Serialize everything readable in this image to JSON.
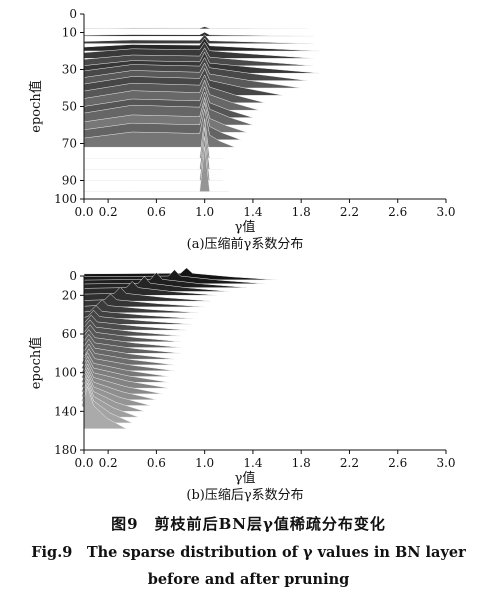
{
  "chart_data": [
    {
      "type": "area",
      "subtitle": "(a)压缩前γ系数分布",
      "xlabel": "γ值",
      "ylabel": "epoch值",
      "xlim": [
        0,
        3.0
      ],
      "ylim": [
        0,
        100
      ],
      "y_inverted": true,
      "x_ticks": [
        "0.0",
        "0.2",
        "0.6",
        "1.0",
        "1.4",
        "1.8",
        "2.2",
        "2.6",
        "3.0"
      ],
      "x_tick_values": [
        0.0,
        0.2,
        0.6,
        1.0,
        1.4,
        1.8,
        2.2,
        2.6,
        3.0
      ],
      "y_ticks": [
        "0",
        "10",
        "30",
        "50",
        "70",
        "90",
        "100"
      ],
      "y_tick_values": [
        0,
        10,
        30,
        50,
        70,
        90,
        100
      ],
      "series": [
        {
          "epoch": 8,
          "peak": 1.0,
          "height": 2,
          "extent": 1.85,
          "ridge": 0.35
        },
        {
          "epoch": 12,
          "peak": 1.0,
          "height": 4,
          "extent": 1.9,
          "ridge": 0.4
        },
        {
          "epoch": 16,
          "peak": 1.0,
          "height": 9,
          "extent": 1.9,
          "ridge": 0.4
        },
        {
          "epoch": 20,
          "peak": 1.0,
          "height": 13,
          "extent": 1.95,
          "ridge": 0.5
        },
        {
          "epoch": 24,
          "peak": 1.0,
          "height": 16,
          "extent": 1.9,
          "ridge": 0.6
        },
        {
          "epoch": 28,
          "peak": 1.0,
          "height": 18,
          "extent": 1.9,
          "ridge": 0.6
        },
        {
          "epoch": 32,
          "peak": 1.0,
          "height": 21,
          "extent": 1.95,
          "ridge": 0.6
        },
        {
          "epoch": 36,
          "peak": 1.0,
          "height": 23,
          "extent": 1.85,
          "ridge": 0.7
        },
        {
          "epoch": 40,
          "peak": 1.0,
          "height": 25,
          "extent": 1.8,
          "ridge": 0.7
        },
        {
          "epoch": 44,
          "peak": 1.0,
          "height": 27,
          "extent": 1.65,
          "ridge": 0.7
        },
        {
          "epoch": 48,
          "peak": 1.0,
          "height": 28,
          "extent": 1.5,
          "ridge": 0.7
        },
        {
          "epoch": 52,
          "peak": 1.0,
          "height": 30,
          "extent": 1.45,
          "ridge": 0.65
        },
        {
          "epoch": 56,
          "peak": 1.0,
          "height": 31,
          "extent": 1.4,
          "ridge": 0.6
        },
        {
          "epoch": 60,
          "peak": 1.0,
          "height": 33,
          "extent": 1.4,
          "ridge": 0.6
        },
        {
          "epoch": 64,
          "peak": 1.0,
          "height": 35,
          "extent": 1.35,
          "ridge": 0.5
        },
        {
          "epoch": 68,
          "peak": 1.0,
          "height": 37,
          "extent": 1.3,
          "ridge": 0.45
        },
        {
          "epoch": 72,
          "peak": 1.0,
          "height": 38,
          "extent": 1.25,
          "ridge": 0.4
        },
        {
          "epoch": 78,
          "peak": 1.0,
          "height": 40,
          "extent": 1.15,
          "ridge": 0
        },
        {
          "epoch": 84,
          "peak": 1.0,
          "height": 42,
          "extent": 1.15,
          "ridge": 0
        },
        {
          "epoch": 90,
          "peak": 1.0,
          "height": 44,
          "extent": 1.15,
          "ridge": 0
        },
        {
          "epoch": 96,
          "peak": 1.0,
          "height": 45,
          "extent": 1.2,
          "ridge": 0
        }
      ]
    },
    {
      "type": "area",
      "subtitle": "(b)压缩后γ系数分布",
      "xlabel": "γ值",
      "ylabel": "epoch值",
      "xlim": [
        0,
        3.0
      ],
      "ylim": [
        0,
        180
      ],
      "y_inverted": true,
      "x_ticks": [
        "0.0",
        "0.2",
        "0.6",
        "1.0",
        "1.4",
        "1.8",
        "2.2",
        "2.6",
        "3.0"
      ],
      "x_tick_values": [
        0.0,
        0.2,
        0.6,
        1.0,
        1.4,
        1.8,
        2.2,
        2.6,
        3.0
      ],
      "y_ticks": [
        "0",
        "20",
        "60",
        "100",
        "140",
        "180"
      ],
      "y_tick_values": [
        0,
        20,
        60,
        100,
        140,
        180
      ],
      "series": [
        {
          "epoch": 4,
          "peak": 0.85,
          "height": 12,
          "extent": 1.6
        },
        {
          "epoch": 8,
          "peak": 0.75,
          "height": 14,
          "extent": 1.5
        },
        {
          "epoch": 12,
          "peak": 0.6,
          "height": 15,
          "extent": 1.35
        },
        {
          "epoch": 16,
          "peak": 0.5,
          "height": 15,
          "extent": 1.2
        },
        {
          "epoch": 20,
          "peak": 0.4,
          "height": 14,
          "extent": 1.1
        },
        {
          "epoch": 26,
          "peak": 0.3,
          "height": 14,
          "extent": 1.05
        },
        {
          "epoch": 32,
          "peak": 0.22,
          "height": 13,
          "extent": 1.0
        },
        {
          "epoch": 38,
          "peak": 0.15,
          "height": 13,
          "extent": 0.95
        },
        {
          "epoch": 44,
          "peak": 0.1,
          "height": 13,
          "extent": 0.9
        },
        {
          "epoch": 50,
          "peak": 0.08,
          "height": 14,
          "extent": 0.9
        },
        {
          "epoch": 56,
          "peak": 0.06,
          "height": 15,
          "extent": 0.85
        },
        {
          "epoch": 62,
          "peak": 0.05,
          "height": 16,
          "extent": 0.8
        },
        {
          "epoch": 68,
          "peak": 0.05,
          "height": 17,
          "extent": 0.8
        },
        {
          "epoch": 74,
          "peak": 0.04,
          "height": 18,
          "extent": 0.8
        },
        {
          "epoch": 80,
          "peak": 0.04,
          "height": 19,
          "extent": 0.8
        },
        {
          "epoch": 86,
          "peak": 0.04,
          "height": 20,
          "extent": 0.75
        },
        {
          "epoch": 92,
          "peak": 0.04,
          "height": 21,
          "extent": 0.75
        },
        {
          "epoch": 98,
          "peak": 0.04,
          "height": 22,
          "extent": 0.75
        },
        {
          "epoch": 104,
          "peak": 0.03,
          "height": 24,
          "extent": 0.7
        },
        {
          "epoch": 110,
          "peak": 0.03,
          "height": 26,
          "extent": 0.7
        },
        {
          "epoch": 116,
          "peak": 0.03,
          "height": 28,
          "extent": 0.7
        },
        {
          "epoch": 122,
          "peak": 0.03,
          "height": 30,
          "extent": 0.65
        },
        {
          "epoch": 128,
          "peak": 0.03,
          "height": 32,
          "extent": 0.6
        },
        {
          "epoch": 134,
          "peak": 0.03,
          "height": 34,
          "extent": 0.55
        },
        {
          "epoch": 140,
          "peak": 0.03,
          "height": 36,
          "extent": 0.5
        },
        {
          "epoch": 146,
          "peak": 0.03,
          "height": 38,
          "extent": 0.45
        },
        {
          "epoch": 152,
          "peak": 0.03,
          "height": 40,
          "extent": 0.4
        },
        {
          "epoch": 158,
          "peak": 0.03,
          "height": 42,
          "extent": 0.35
        }
      ]
    }
  ],
  "caption": {
    "cn": "图9　剪枝前后BN层γ值稀疏分布变化",
    "en_line1": "Fig.9　The sparse distribution of γ values in BN layer",
    "en_line2": "before and after pruning"
  }
}
